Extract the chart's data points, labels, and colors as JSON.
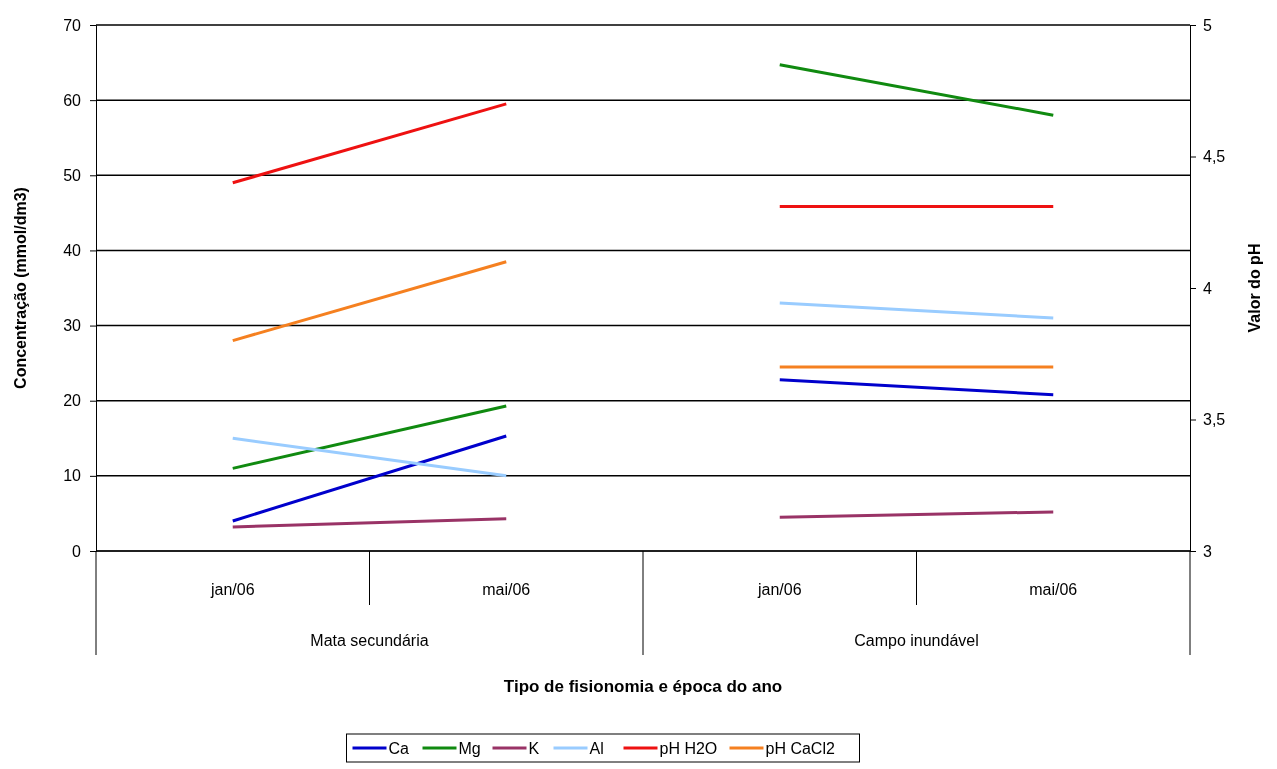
{
  "chart_data": {
    "type": "line",
    "xlabel": "Tipo de fisionomia e época do ano",
    "ylabel": "Concentração (mmol/dm3)",
    "y2label": "Valor do pH",
    "categories": [
      "jan/06",
      "mai/06",
      "jan/06",
      "mai/06"
    ],
    "annotations": [
      "Mata secundária",
      "Campo inundável"
    ],
    "ylim": [
      0,
      70
    ],
    "yticks": [
      0,
      10,
      20,
      30,
      40,
      50,
      60,
      70
    ],
    "y2lim": [
      3,
      5
    ],
    "y2ticks": [
      3,
      {
        "value": 3.5,
        "label": "3,5"
      },
      4,
      {
        "value": 4.5,
        "label": "4,5"
      },
      5
    ],
    "grid": "y",
    "legend": "bottom",
    "marker": "none",
    "line_style": "solid",
    "series": [
      {
        "name": "Ca",
        "color": "#0000cc",
        "values": [
          4,
          15.3,
          null,
          null
        ]
      },
      {
        "color": "#0000cc",
        "values": [
          null,
          null,
          22.8,
          20.8
        ]
      },
      {
        "name": "Mg",
        "color": "#108a10",
        "values": [
          11,
          19.3,
          null,
          null
        ]
      },
      {
        "color": "#108a10",
        "values": [
          null,
          null,
          64.7,
          58
        ]
      },
      {
        "name": "K",
        "color": "#993366",
        "values": [
          3.2,
          4.3,
          null,
          null
        ]
      },
      {
        "color": "#993366",
        "values": [
          null,
          null,
          4.5,
          5.2
        ]
      },
      {
        "name": "Al",
        "color": "#99ccff",
        "values": [
          15,
          10,
          null,
          null
        ]
      },
      {
        "color": "#99ccff",
        "values": [
          null,
          null,
          33,
          31
        ]
      },
      {
        "name": "pH H2O",
        "color": "#ee1111",
        "axis": "y2",
        "values": [
          4.4,
          4.7,
          null,
          null
        ]
      },
      {
        "color": "#ee1111",
        "axis": "y2",
        "values": [
          null,
          null,
          4.31,
          4.31
        ]
      },
      {
        "name": "pH CaCl2",
        "color": "#f58020",
        "axis": "y2",
        "values": [
          3.8,
          4.1,
          null,
          null
        ]
      },
      {
        "color": "#f58020",
        "axis": "y2",
        "values": [
          null,
          null,
          3.7,
          3.7
        ]
      }
    ]
  }
}
